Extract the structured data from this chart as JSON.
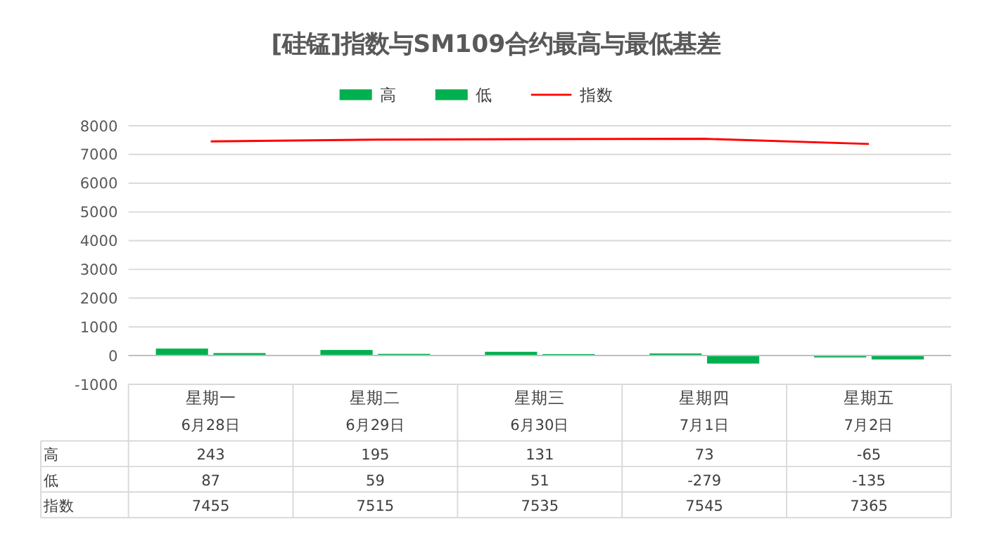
{
  "chart_data": {
    "type": "bar",
    "title": "[硅锰]指数与SM109合约最高与最低基差",
    "categories": [
      "星期一\n6月28日",
      "星期二\n6月29日",
      "星期三\n6月30日",
      "星期四\n7月1日",
      "星期五\n7月2日"
    ],
    "series": [
      {
        "name": "高",
        "color": "#00b050",
        "values": [
          243,
          195,
          131,
          73,
          -65
        ]
      },
      {
        "name": "低",
        "color": "#00b050",
        "values": [
          87,
          59,
          51,
          -279,
          -135
        ]
      },
      {
        "name": "指数",
        "type": "line",
        "color": "#ff0000",
        "values": [
          7455,
          7515,
          7535,
          7545,
          7365
        ]
      }
    ],
    "ylim": [
      -1000,
      8000
    ],
    "yticks": [
      -1000,
      0,
      1000,
      2000,
      3000,
      4000,
      5000,
      6000,
      7000,
      8000
    ],
    "grid": "y",
    "legend": "top",
    "data_labels": true
  }
}
